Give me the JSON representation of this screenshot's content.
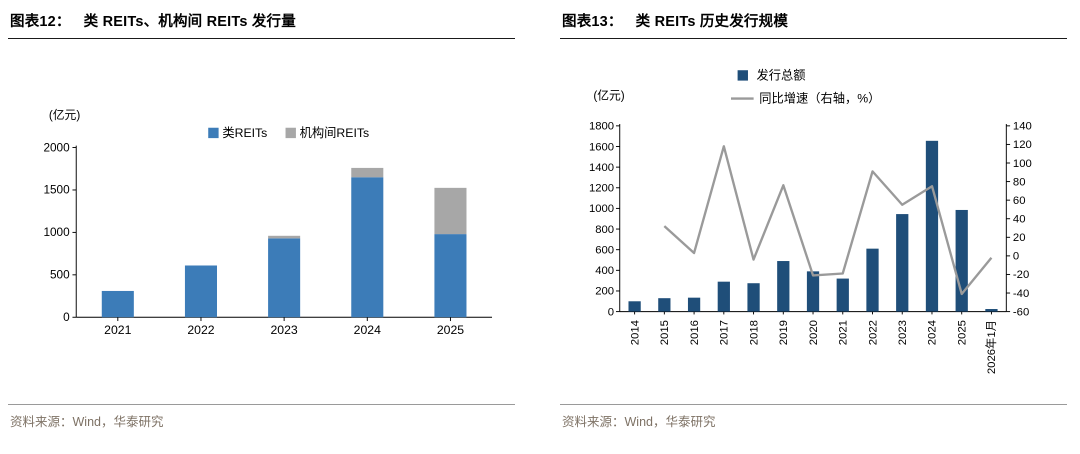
{
  "figures": [
    {
      "title_label": "图表12：",
      "title_text": "类 REITs、机构间 REITs 发行量",
      "source": "资料来源：Wind，华泰研究"
    },
    {
      "title_label": "图表13：",
      "title_text": "类 REITs 历史发行规模",
      "source": "资料来源：Wind，华泰研究"
    }
  ],
  "chart_data": [
    {
      "type": "bar",
      "stacked": true,
      "title": "类 REITs、机构间 REITs 发行量",
      "unit_label": "(亿元)",
      "categories": [
        "2021",
        "2022",
        "2023",
        "2024",
        "2025"
      ],
      "series": [
        {
          "name": "类REITs",
          "color": "#3C7CB8",
          "values": [
            310,
            610,
            930,
            1650,
            980
          ]
        },
        {
          "name": "机构间REITs",
          "color": "#A7A7A7",
          "values": [
            0,
            0,
            30,
            110,
            545
          ]
        }
      ],
      "ylim": [
        0,
        2000
      ],
      "yticks": [
        0,
        500,
        1000,
        1500,
        2000
      ],
      "legend_position": "top",
      "grid": false
    },
    {
      "type": "bar",
      "overlay": "line",
      "title": "类 REITs 历史发行规模",
      "unit_label": "(亿元)",
      "categories": [
        "2014",
        "2015",
        "2016",
        "2017",
        "2018",
        "2019",
        "2020",
        "2021",
        "2022",
        "2023",
        "2024",
        "2025",
        "2026年1月"
      ],
      "bar_series": {
        "name": "发行总额",
        "color": "#1F4E79",
        "axis": "left",
        "values": [
          100,
          130,
          135,
          290,
          275,
          490,
          390,
          320,
          610,
          945,
          1655,
          985,
          25
        ]
      },
      "line_series": {
        "name": "同比增速（右轴，%）",
        "color": "#9A9A9A",
        "axis": "right",
        "values": [
          null,
          32,
          3,
          118,
          -4,
          76,
          -21,
          -19,
          91,
          55,
          75,
          -41,
          -2
        ]
      },
      "ylim_left": [
        0,
        1800
      ],
      "yticks_left": [
        0,
        200,
        400,
        600,
        800,
        1000,
        1200,
        1400,
        1600,
        1800
      ],
      "ylim_right": [
        -60,
        140
      ],
      "yticks_right": [
        -60,
        -40,
        -20,
        0,
        20,
        40,
        60,
        80,
        100,
        120,
        140
      ],
      "legend_position": "top",
      "grid": false
    }
  ]
}
